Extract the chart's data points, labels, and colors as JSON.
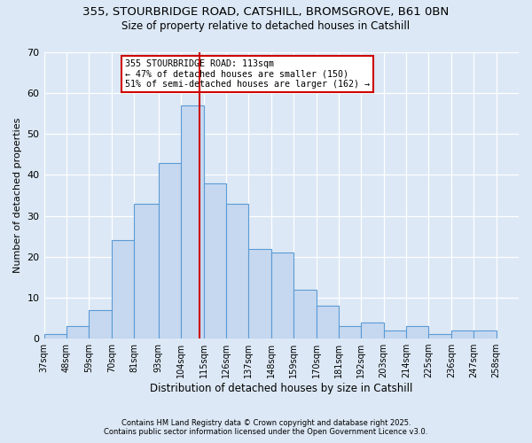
{
  "title1": "355, STOURBRIDGE ROAD, CATSHILL, BROMSGROVE, B61 0BN",
  "title2": "Size of property relative to detached houses in Catshill",
  "xlabel": "Distribution of detached houses by size in Catshill",
  "ylabel": "Number of detached properties",
  "categories": [
    "37sqm",
    "48sqm",
    "59sqm",
    "70sqm",
    "81sqm",
    "93sqm",
    "104sqm",
    "115sqm",
    "126sqm",
    "137sqm",
    "148sqm",
    "159sqm",
    "170sqm",
    "181sqm",
    "192sqm",
    "203sqm",
    "214sqm",
    "225sqm",
    "236sqm",
    "247sqm",
    "258sqm"
  ],
  "bin_edges": [
    37,
    48,
    59,
    70,
    81,
    93,
    104,
    115,
    126,
    137,
    148,
    159,
    170,
    181,
    192,
    203,
    214,
    225,
    236,
    247,
    258
  ],
  "values": [
    1,
    3,
    7,
    24,
    33,
    43,
    57,
    38,
    33,
    22,
    21,
    12,
    8,
    3,
    4,
    2,
    3,
    1,
    2,
    2
  ],
  "bar_color": "#c5d8f0",
  "bar_edge_color": "#5b9bd5",
  "bar_edge_width": 0.8,
  "vline_x": 113,
  "vline_color": "#cc0000",
  "ylim": [
    0,
    70
  ],
  "yticks": [
    0,
    10,
    20,
    30,
    40,
    50,
    60,
    70
  ],
  "annotation_title": "355 STOURBRIDGE ROAD: 113sqm",
  "annotation_line1": "← 47% of detached houses are smaller (150)",
  "annotation_line2": "51% of semi-detached houses are larger (162) →",
  "annotation_box_color": "#cc0000",
  "footer1": "Contains HM Land Registry data © Crown copyright and database right 2025.",
  "footer2": "Contains public sector information licensed under the Open Government Licence v3.0.",
  "bg_color": "#dce8f5",
  "plot_bg_color": "#dce8f5"
}
